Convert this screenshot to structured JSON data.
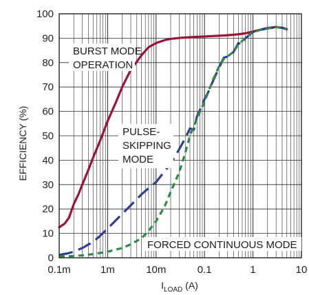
{
  "chart_data": {
    "type": "line",
    "xscale": "log",
    "xlim": [
      0.0001,
      10
    ],
    "ylim": [
      0,
      100
    ],
    "grid": true,
    "x_ticks": [
      {
        "value": 0.0001,
        "label": "0.1m"
      },
      {
        "value": 0.001,
        "label": "1m"
      },
      {
        "value": 0.01,
        "label": "10m"
      },
      {
        "value": 0.1,
        "label": "0.1"
      },
      {
        "value": 1,
        "label": "1"
      },
      {
        "value": 10,
        "label": "10"
      }
    ],
    "y_ticks": [
      0,
      10,
      20,
      30,
      40,
      50,
      60,
      70,
      80,
      90,
      100
    ],
    "y_tick_labels": [
      "0",
      "10",
      "20",
      "30",
      "40",
      "50",
      "60",
      "70",
      "80",
      "90",
      "100"
    ],
    "xlabel_main": "I",
    "xlabel_sub": "LOAD",
    "xlabel_unit": " (A)",
    "ylabel": "EFFICIENCY (%)",
    "series": [
      {
        "color": "#9b1238",
        "dash": "solid",
        "x": [
          0.0001,
          0.00013,
          0.00016,
          0.0002,
          0.00025,
          0.0003,
          0.0004,
          0.0005,
          0.0007,
          0.001,
          0.0015,
          0.002,
          0.003,
          0.005,
          0.007,
          0.01,
          0.015,
          0.02,
          0.03,
          0.05,
          0.1,
          0.2,
          0.3,
          0.5,
          0.7,
          1,
          1.5,
          2,
          3,
          4,
          5
        ],
        "y": [
          12.5,
          14,
          16.5,
          22,
          26,
          30,
          36,
          41,
          48,
          56,
          64,
          70,
          77,
          83,
          86.3,
          88,
          89.2,
          89.7,
          90.1,
          90.4,
          90.7,
          91,
          91.2,
          91.6,
          92,
          92.7,
          93.6,
          94.2,
          94.6,
          94.3,
          93.7
        ]
      },
      {
        "color": "#2e3f8f",
        "dash": "long",
        "x": [
          0.0001,
          0.00015,
          0.0002,
          0.0003,
          0.0005,
          0.0007,
          0.001,
          0.0015,
          0.002,
          0.003,
          0.005,
          0.007,
          0.01,
          0.015,
          0.02,
          0.03,
          0.04,
          0.05,
          0.06,
          0.07,
          0.08,
          0.1,
          0.12,
          0.15,
          0.2,
          0.25,
          0.3,
          0.35,
          0.4,
          0.5,
          0.6,
          0.7,
          1,
          1.5,
          2,
          3,
          4,
          5
        ],
        "y": [
          1.2,
          1.8,
          2.5,
          4,
          6.5,
          9,
          12,
          15.5,
          18,
          21.5,
          26,
          28.5,
          31,
          35.5,
          38.5,
          44.5,
          49,
          53,
          52.5,
          58,
          60.5,
          65,
          68,
          72.5,
          78,
          82,
          82.5,
          83,
          84.5,
          88,
          87.5,
          90,
          92.5,
          93.5,
          94,
          94.5,
          94.2,
          93.6
        ]
      },
      {
        "color": "#2f8a4a",
        "dash": "short",
        "x": [
          0.0001,
          0.0002,
          0.0003,
          0.0005,
          0.001,
          0.002,
          0.003,
          0.005,
          0.007,
          0.01,
          0.015,
          0.02,
          0.03,
          0.04,
          0.05,
          0.07,
          0.1,
          0.12,
          0.15,
          0.2,
          0.25,
          0.3,
          0.4,
          0.5,
          0.7,
          1,
          1.5,
          2,
          3,
          4,
          5
        ],
        "y": [
          0.5,
          0.7,
          1,
          1.5,
          2.5,
          4,
          5.5,
          8,
          11,
          15,
          21,
          27,
          35,
          43,
          50,
          57,
          64,
          68,
          73,
          78.5,
          81.5,
          82.5,
          84.5,
          87.5,
          90,
          92.5,
          93.5,
          94,
          94.5,
          94.2,
          93.6
        ]
      }
    ],
    "annotations": [
      {
        "lines": [
          "BURST MODE",
          "OPERATION"
        ]
      },
      {
        "lines": [
          "PULSE-",
          "SKIPPING",
          "MODE"
        ]
      },
      {
        "lines": [
          "FORCED CONTINUOUS MODE"
        ]
      }
    ]
  }
}
